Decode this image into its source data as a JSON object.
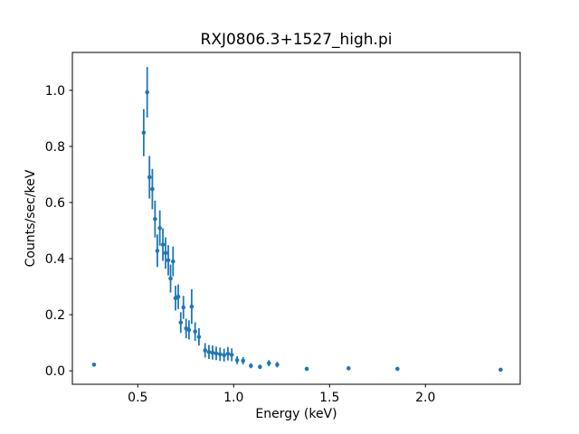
{
  "figure": {
    "background_color": "#ffffff",
    "spine_color": "#000000",
    "marker_color": "#1f77b4"
  },
  "chart_data": {
    "type": "scatter",
    "title": "RXJ0806.3+1527_high.pi",
    "xlabel": "Energy (keV)",
    "ylabel": "Counts/sec/keV",
    "xlim": [
      0.159,
      2.494
    ],
    "ylim": [
      -0.048,
      1.135
    ],
    "xticks": [
      0.5,
      1.0,
      1.5,
      2.0
    ],
    "yticks": [
      0.0,
      0.2,
      0.4,
      0.6,
      0.8,
      1.0
    ],
    "grid": false,
    "legend": null,
    "marker": "point",
    "marker_color": "#1f77b4",
    "errorbars": "vertical-no-caps",
    "x": [
      0.272,
      0.531,
      0.549,
      0.561,
      0.576,
      0.59,
      0.602,
      0.615,
      0.631,
      0.645,
      0.659,
      0.671,
      0.684,
      0.697,
      0.711,
      0.724,
      0.738,
      0.752,
      0.767,
      0.781,
      0.799,
      0.819,
      0.851,
      0.871,
      0.89,
      0.909,
      0.929,
      0.95,
      0.97,
      0.99,
      1.018,
      1.049,
      1.09,
      1.137,
      1.184,
      1.227,
      1.381,
      1.599,
      1.854,
      2.392
    ],
    "y": [
      0.022,
      0.849,
      0.993,
      0.69,
      0.648,
      0.541,
      0.428,
      0.509,
      0.45,
      0.42,
      0.394,
      0.329,
      0.39,
      0.259,
      0.264,
      0.172,
      0.226,
      0.151,
      0.146,
      0.229,
      0.14,
      0.121,
      0.073,
      0.067,
      0.065,
      0.062,
      0.059,
      0.056,
      0.061,
      0.057,
      0.038,
      0.036,
      0.018,
      0.014,
      0.027,
      0.022,
      0.007,
      0.009,
      0.007,
      0.004
    ],
    "yerr": [
      0.004,
      0.084,
      0.09,
      0.076,
      0.072,
      0.066,
      0.058,
      0.063,
      0.058,
      0.056,
      0.054,
      0.05,
      0.053,
      0.044,
      0.044,
      0.037,
      0.041,
      0.035,
      0.034,
      0.062,
      0.033,
      0.031,
      0.026,
      0.025,
      0.025,
      0.024,
      0.024,
      0.023,
      0.024,
      0.023,
      0.014,
      0.013,
      0.009,
      0.008,
      0.011,
      0.01,
      0.004,
      0.004,
      0.003,
      0.003
    ]
  }
}
